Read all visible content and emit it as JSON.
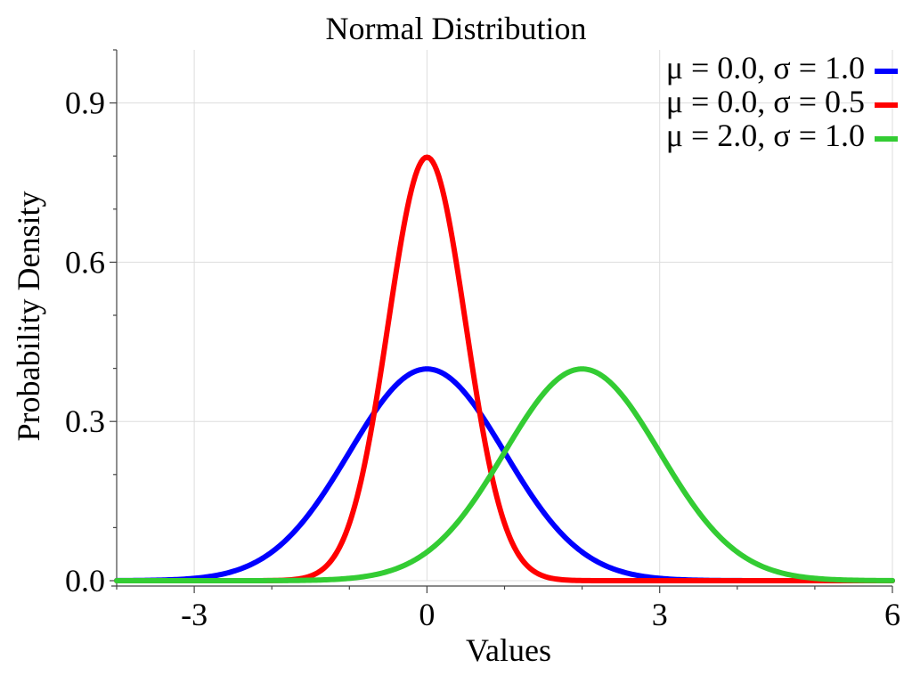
{
  "chart_data": {
    "type": "line",
    "title": "Normal Distribution",
    "xlabel": "Values",
    "ylabel": "Probability Density",
    "xlim": [
      -4,
      6
    ],
    "ylim": [
      0,
      1
    ],
    "x_ticks": [
      -3,
      0,
      3,
      6
    ],
    "x_tick_labels": [
      "-3",
      "0",
      "3",
      "6"
    ],
    "y_ticks": [
      0,
      0.3,
      0.6,
      0.9
    ],
    "y_tick_labels": [
      "0.0",
      "0.3",
      "0.6",
      "0.9"
    ],
    "grid": true,
    "legend_position": "top-right",
    "series": [
      {
        "name": "μ = 0.0, σ = 1.0",
        "mu": 0.0,
        "sigma": 1.0,
        "color": "#0000ff",
        "x": [
          -4,
          -3,
          -2,
          -1,
          0,
          1,
          2,
          3,
          4,
          5,
          6
        ],
        "values": [
          0.0001,
          0.0044,
          0.054,
          0.242,
          0.399,
          0.242,
          0.054,
          0.0044,
          0.0001,
          0.0,
          0.0
        ]
      },
      {
        "name": "μ = 0.0, σ = 0.5",
        "mu": 0.0,
        "sigma": 0.5,
        "color": "#ff0000",
        "x": [
          -4,
          -3,
          -2,
          -1,
          0,
          1,
          2,
          3,
          4,
          5,
          6
        ],
        "values": [
          0.0,
          0.0,
          0.0003,
          0.108,
          0.798,
          0.108,
          0.0003,
          0.0,
          0.0,
          0.0,
          0.0
        ]
      },
      {
        "name": "μ = 2.0, σ = 1.0",
        "mu": 2.0,
        "sigma": 1.0,
        "color": "#33cc33",
        "x": [
          -4,
          -3,
          -2,
          -1,
          0,
          1,
          2,
          3,
          4,
          5,
          6
        ],
        "values": [
          0.0,
          0.0,
          0.0001,
          0.0044,
          0.054,
          0.242,
          0.399,
          0.242,
          0.054,
          0.0044,
          0.0001
        ]
      }
    ]
  }
}
